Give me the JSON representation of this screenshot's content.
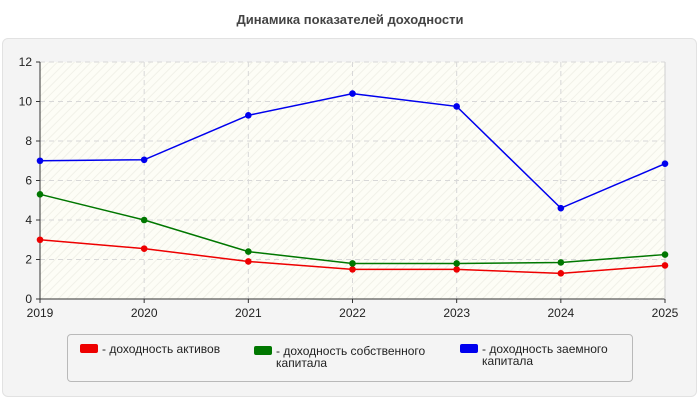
{
  "chart_data": {
    "type": "line",
    "title": "Динамика показателей доходности",
    "x": [
      "2019",
      "2020",
      "2021",
      "2022",
      "2023",
      "2024",
      "2025"
    ],
    "ylim": [
      0,
      12
    ],
    "yticks": [
      0,
      2,
      4,
      6,
      8,
      10,
      12
    ],
    "grid": true,
    "legend_position": "bottom",
    "series": [
      {
        "name": "- доходность активов",
        "color": "#ee0000",
        "values": [
          3.0,
          2.55,
          1.9,
          1.5,
          1.5,
          1.3,
          1.7
        ]
      },
      {
        "name": "- доходность собственного капитала",
        "color": "#007700",
        "values": [
          5.3,
          4.0,
          2.4,
          1.8,
          1.8,
          1.85,
          2.25
        ]
      },
      {
        "name": "- доходность заемного капитала",
        "color": "#0000ee",
        "values": [
          7.0,
          7.05,
          9.3,
          10.4,
          9.75,
          4.6,
          6.85
        ]
      }
    ]
  }
}
